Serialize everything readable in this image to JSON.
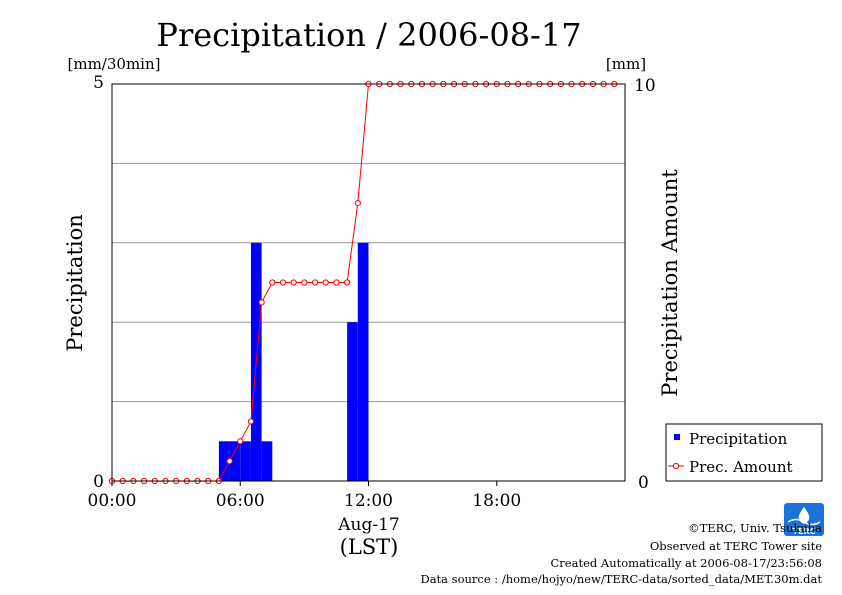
{
  "chart_data": {
    "type": "bar+line",
    "title": "Precipitation / 2006-08-17",
    "left_unit": "[mm/30min]",
    "right_unit": "[mm]",
    "ylabel_left": "Precipitation",
    "ylabel_right": "Precipitation Amount",
    "xlabel_date": "Aug-17",
    "xlabel_tz": "(LST)",
    "ylim_left": [
      0,
      5
    ],
    "ylim_right": [
      0,
      10
    ],
    "xlim_hours": [
      0,
      24
    ],
    "x_ticks": [
      "00:00",
      "06:00",
      "12:00",
      "18:00"
    ],
    "y_left_ticks": [
      "0",
      "5"
    ],
    "y_right_ticks": [
      "0",
      "10"
    ],
    "grid": "horizontal",
    "legend_position": "bottom-right",
    "bar_color": "#0000ff",
    "line_color": "#ff0000",
    "series": [
      {
        "name": "Precipitation",
        "kind": "bar",
        "bin_start_hours": [
          5.0,
          5.5,
          6.0,
          6.5,
          7.0,
          11.0,
          11.5
        ],
        "values": [
          0.5,
          0.5,
          0.5,
          3.0,
          0.5,
          2.0,
          3.0
        ]
      },
      {
        "name": "Prec. Amount",
        "kind": "line",
        "x_hours": [
          0,
          0.5,
          1,
          1.5,
          2,
          2.5,
          3,
          3.5,
          4,
          4.5,
          5,
          5.5,
          6,
          6.5,
          7,
          7.5,
          8,
          8.5,
          9,
          9.5,
          10,
          10.5,
          11,
          11.5,
          12,
          12.5,
          13,
          13.5,
          14,
          14.5,
          15,
          15.5,
          16,
          16.5,
          17,
          17.5,
          18,
          18.5,
          19,
          19.5,
          20,
          20.5,
          21,
          21.5,
          22,
          22.5,
          23,
          23.5
        ],
        "values": [
          0,
          0,
          0,
          0,
          0,
          0,
          0,
          0,
          0,
          0,
          0,
          0.5,
          1.0,
          1.5,
          4.5,
          5.0,
          5.0,
          5.0,
          5.0,
          5.0,
          5.0,
          5.0,
          5.0,
          7.0,
          10,
          10,
          10,
          10,
          10,
          10,
          10,
          10,
          10,
          10,
          10,
          10,
          10,
          10,
          10,
          10,
          10,
          10,
          10,
          10,
          10,
          10,
          10,
          10
        ]
      }
    ]
  },
  "footer": {
    "copyright": "©TERC, Univ. Tsukuba",
    "observed": "Observed at TERC Tower site",
    "created": "Created Automatically at 2006-08-17/23:56:08",
    "source": "Data source : /home/hojyo/new/TERC-data/sorted_data/MET.30m.dat",
    "logo_text": "TERC"
  }
}
